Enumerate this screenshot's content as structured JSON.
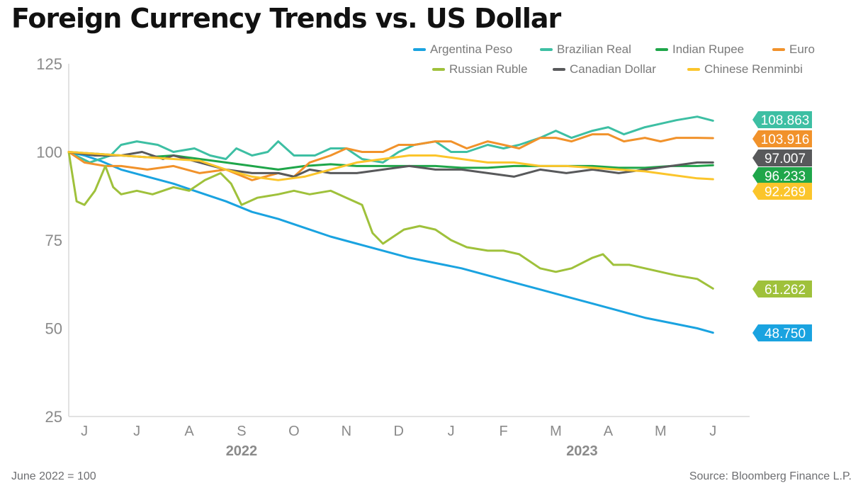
{
  "title": "Foreign Currency Trends vs. US Dollar",
  "footnote": "June 2022 = 100",
  "source": "Source: Bloomberg Finance L.P.",
  "chart_data": {
    "type": "line",
    "title": "Foreign Currency Trends vs. US Dollar",
    "ylim": [
      25,
      125
    ],
    "yticks": [
      25,
      50,
      75,
      100,
      125
    ],
    "month_ticks": [
      "J",
      "J",
      "A",
      "S",
      "O",
      "N",
      "D",
      "J",
      "F",
      "M",
      "A",
      "M",
      "J"
    ],
    "year_labels": [
      "2022",
      "2023"
    ],
    "x_note": "x values are months from the start of June 2022 (0) to the start of July 2023 (13)",
    "legend_position": "top-right",
    "grid": false,
    "series": [
      {
        "name": "Argentina Peso",
        "color": "#1aa3e0",
        "end_label": "48.750",
        "points": [
          [
            0,
            100
          ],
          [
            0.3,
            99
          ],
          [
            0.6,
            97.5
          ],
          [
            1,
            95
          ],
          [
            1.5,
            93
          ],
          [
            2,
            91
          ],
          [
            2.5,
            88.5
          ],
          [
            3,
            86
          ],
          [
            3.5,
            83
          ],
          [
            4,
            81
          ],
          [
            4.5,
            78.5
          ],
          [
            5,
            76
          ],
          [
            5.5,
            74
          ],
          [
            6,
            72
          ],
          [
            6.5,
            70
          ],
          [
            7,
            68.5
          ],
          [
            7.5,
            67
          ],
          [
            8,
            65
          ],
          [
            8.5,
            63
          ],
          [
            9,
            61
          ],
          [
            9.5,
            59
          ],
          [
            10,
            57
          ],
          [
            10.5,
            55
          ],
          [
            11,
            53
          ],
          [
            11.5,
            51.5
          ],
          [
            12,
            50
          ],
          [
            12.3,
            48.75
          ]
        ]
      },
      {
        "name": "Brazilian Real",
        "color": "#3dbfa3",
        "end_label": "108.863",
        "points": [
          [
            0,
            100
          ],
          [
            0.4,
            97
          ],
          [
            0.8,
            99
          ],
          [
            1,
            102
          ],
          [
            1.3,
            103
          ],
          [
            1.7,
            102
          ],
          [
            2,
            100
          ],
          [
            2.4,
            101
          ],
          [
            2.7,
            99
          ],
          [
            3,
            98
          ],
          [
            3.2,
            101
          ],
          [
            3.5,
            99
          ],
          [
            3.8,
            100
          ],
          [
            4,
            103
          ],
          [
            4.3,
            99
          ],
          [
            4.7,
            99
          ],
          [
            5,
            101
          ],
          [
            5.3,
            101
          ],
          [
            5.6,
            98
          ],
          [
            6,
            97
          ],
          [
            6.3,
            100
          ],
          [
            6.6,
            102
          ],
          [
            7,
            103
          ],
          [
            7.3,
            100
          ],
          [
            7.6,
            100
          ],
          [
            8,
            102
          ],
          [
            8.3,
            101
          ],
          [
            8.6,
            102
          ],
          [
            9,
            104
          ],
          [
            9.3,
            106
          ],
          [
            9.6,
            104
          ],
          [
            10,
            106
          ],
          [
            10.3,
            107
          ],
          [
            10.6,
            105
          ],
          [
            11,
            107
          ],
          [
            11.3,
            108
          ],
          [
            11.6,
            109
          ],
          [
            12,
            110
          ],
          [
            12.3,
            108.863
          ]
        ]
      },
      {
        "name": "Indian Rupee",
        "color": "#1fa64a",
        "end_label": "96.233",
        "points": [
          [
            0,
            100
          ],
          [
            0.5,
            99.5
          ],
          [
            1,
            99
          ],
          [
            1.5,
            98.5
          ],
          [
            2,
            99
          ],
          [
            2.5,
            98
          ],
          [
            3,
            97
          ],
          [
            3.5,
            96
          ],
          [
            4,
            95
          ],
          [
            4.5,
            96
          ],
          [
            5,
            96.5
          ],
          [
            5.5,
            96
          ],
          [
            6,
            96
          ],
          [
            6.5,
            96
          ],
          [
            7,
            96
          ],
          [
            7.5,
            95.5
          ],
          [
            8,
            95.5
          ],
          [
            8.5,
            96
          ],
          [
            9,
            96
          ],
          [
            9.5,
            96
          ],
          [
            10,
            96
          ],
          [
            10.5,
            95.5
          ],
          [
            11,
            95.5
          ],
          [
            11.5,
            96
          ],
          [
            12,
            96
          ],
          [
            12.3,
            96.233
          ]
        ]
      },
      {
        "name": "Euro",
        "color": "#f1922b",
        "end_label": "103.916",
        "points": [
          [
            0,
            100
          ],
          [
            0.3,
            97
          ],
          [
            0.7,
            96
          ],
          [
            1,
            96
          ],
          [
            1.5,
            95
          ],
          [
            2,
            96
          ],
          [
            2.5,
            94
          ],
          [
            3,
            95
          ],
          [
            3.5,
            92
          ],
          [
            4,
            94
          ],
          [
            4.3,
            93
          ],
          [
            4.6,
            97
          ],
          [
            5,
            99
          ],
          [
            5.3,
            101
          ],
          [
            5.6,
            100
          ],
          [
            6,
            100
          ],
          [
            6.3,
            102
          ],
          [
            6.6,
            102
          ],
          [
            7,
            103
          ],
          [
            7.3,
            103
          ],
          [
            7.6,
            101
          ],
          [
            8,
            103
          ],
          [
            8.3,
            102
          ],
          [
            8.6,
            101
          ],
          [
            9,
            104
          ],
          [
            9.3,
            104
          ],
          [
            9.6,
            103
          ],
          [
            10,
            105
          ],
          [
            10.3,
            105
          ],
          [
            10.6,
            103
          ],
          [
            11,
            104
          ],
          [
            11.3,
            103
          ],
          [
            11.6,
            104
          ],
          [
            12,
            104
          ],
          [
            12.3,
            103.916
          ]
        ]
      },
      {
        "name": "Russian Ruble",
        "color": "#9fc13b",
        "end_label": "61.262",
        "points": [
          [
            0,
            100
          ],
          [
            0.15,
            86
          ],
          [
            0.3,
            85
          ],
          [
            0.5,
            89
          ],
          [
            0.7,
            96
          ],
          [
            0.85,
            90
          ],
          [
            1,
            88
          ],
          [
            1.3,
            89
          ],
          [
            1.6,
            88
          ],
          [
            2,
            90
          ],
          [
            2.3,
            89
          ],
          [
            2.6,
            92
          ],
          [
            2.9,
            94
          ],
          [
            3.1,
            91
          ],
          [
            3.3,
            85
          ],
          [
            3.6,
            87
          ],
          [
            4,
            88
          ],
          [
            4.3,
            89
          ],
          [
            4.6,
            88
          ],
          [
            5,
            89
          ],
          [
            5.3,
            87
          ],
          [
            5.6,
            85
          ],
          [
            5.8,
            77
          ],
          [
            6,
            74
          ],
          [
            6.2,
            76
          ],
          [
            6.4,
            78
          ],
          [
            6.7,
            79
          ],
          [
            7,
            78
          ],
          [
            7.3,
            75
          ],
          [
            7.6,
            73
          ],
          [
            8,
            72
          ],
          [
            8.3,
            72
          ],
          [
            8.6,
            71
          ],
          [
            9,
            67
          ],
          [
            9.3,
            66
          ],
          [
            9.6,
            67
          ],
          [
            10,
            70
          ],
          [
            10.2,
            71
          ],
          [
            10.4,
            68
          ],
          [
            10.7,
            68
          ],
          [
            11,
            67
          ],
          [
            11.3,
            66
          ],
          [
            11.6,
            65
          ],
          [
            12,
            64
          ],
          [
            12.3,
            61.262
          ]
        ]
      },
      {
        "name": "Canadian Dollar",
        "color": "#58595b",
        "end_label": "97.007",
        "points": [
          [
            0,
            100
          ],
          [
            0.5,
            99
          ],
          [
            1,
            99
          ],
          [
            1.4,
            100
          ],
          [
            1.8,
            98
          ],
          [
            2,
            99
          ],
          [
            2.5,
            97
          ],
          [
            3,
            95
          ],
          [
            3.5,
            94
          ],
          [
            4,
            94
          ],
          [
            4.3,
            93
          ],
          [
            4.6,
            95
          ],
          [
            5,
            94
          ],
          [
            5.5,
            94
          ],
          [
            6,
            95
          ],
          [
            6.5,
            96
          ],
          [
            7,
            95
          ],
          [
            7.5,
            95
          ],
          [
            8,
            94
          ],
          [
            8.5,
            93
          ],
          [
            9,
            95
          ],
          [
            9.5,
            94
          ],
          [
            10,
            95
          ],
          [
            10.5,
            94
          ],
          [
            11,
            95
          ],
          [
            11.5,
            96
          ],
          [
            12,
            97
          ],
          [
            12.3,
            97.007
          ]
        ]
      },
      {
        "name": "Chinese Renminbi",
        "color": "#fbc52b",
        "end_label": "92.269",
        "points": [
          [
            0,
            100
          ],
          [
            0.5,
            99.5
          ],
          [
            1,
            99
          ],
          [
            1.5,
            98.5
          ],
          [
            2,
            98
          ],
          [
            2.5,
            97.5
          ],
          [
            3,
            95
          ],
          [
            3.5,
            93
          ],
          [
            4,
            92
          ],
          [
            4.5,
            93
          ],
          [
            5,
            95
          ],
          [
            5.5,
            97
          ],
          [
            6,
            98
          ],
          [
            6.5,
            99
          ],
          [
            7,
            99
          ],
          [
            7.5,
            98
          ],
          [
            8,
            97
          ],
          [
            8.5,
            97
          ],
          [
            9,
            96
          ],
          [
            9.5,
            96
          ],
          [
            10,
            95.5
          ],
          [
            10.5,
            95
          ],
          [
            11,
            94.5
          ],
          [
            11.5,
            93.5
          ],
          [
            12,
            92.5
          ],
          [
            12.3,
            92.269
          ]
        ]
      }
    ]
  }
}
